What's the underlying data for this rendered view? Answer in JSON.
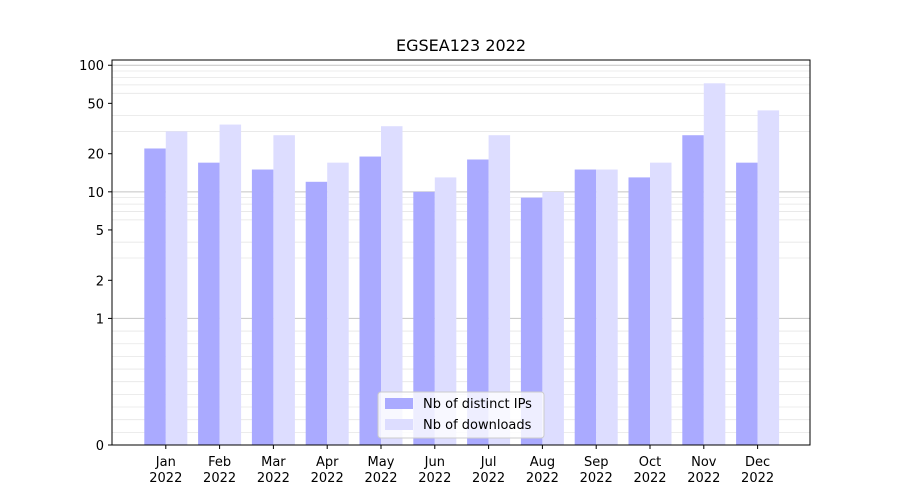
{
  "chart_data": {
    "type": "bar",
    "title": "EGSEA123 2022",
    "xlabel": "",
    "ylabel": "",
    "y_scale": "symlog",
    "yticks": [
      0,
      1,
      2,
      5,
      10,
      20,
      50,
      100
    ],
    "ylim": [
      0,
      110
    ],
    "grid": true,
    "legend_position": "bottom-center",
    "categories": [
      {
        "month": "Jan",
        "year": "2022"
      },
      {
        "month": "Feb",
        "year": "2022"
      },
      {
        "month": "Mar",
        "year": "2022"
      },
      {
        "month": "Apr",
        "year": "2022"
      },
      {
        "month": "May",
        "year": "2022"
      },
      {
        "month": "Jun",
        "year": "2022"
      },
      {
        "month": "Jul",
        "year": "2022"
      },
      {
        "month": "Aug",
        "year": "2022"
      },
      {
        "month": "Sep",
        "year": "2022"
      },
      {
        "month": "Oct",
        "year": "2022"
      },
      {
        "month": "Nov",
        "year": "2022"
      },
      {
        "month": "Dec",
        "year": "2022"
      }
    ],
    "series": [
      {
        "name": "Nb of distinct IPs",
        "color": "#aaaaff",
        "values": [
          22,
          17,
          15,
          12,
          19,
          10,
          18,
          9,
          15,
          13,
          28,
          17
        ]
      },
      {
        "name": "Nb of downloads",
        "color": "#ddddff",
        "values": [
          30,
          34,
          28,
          17,
          33,
          13,
          28,
          10,
          15,
          17,
          72,
          44
        ]
      }
    ]
  }
}
